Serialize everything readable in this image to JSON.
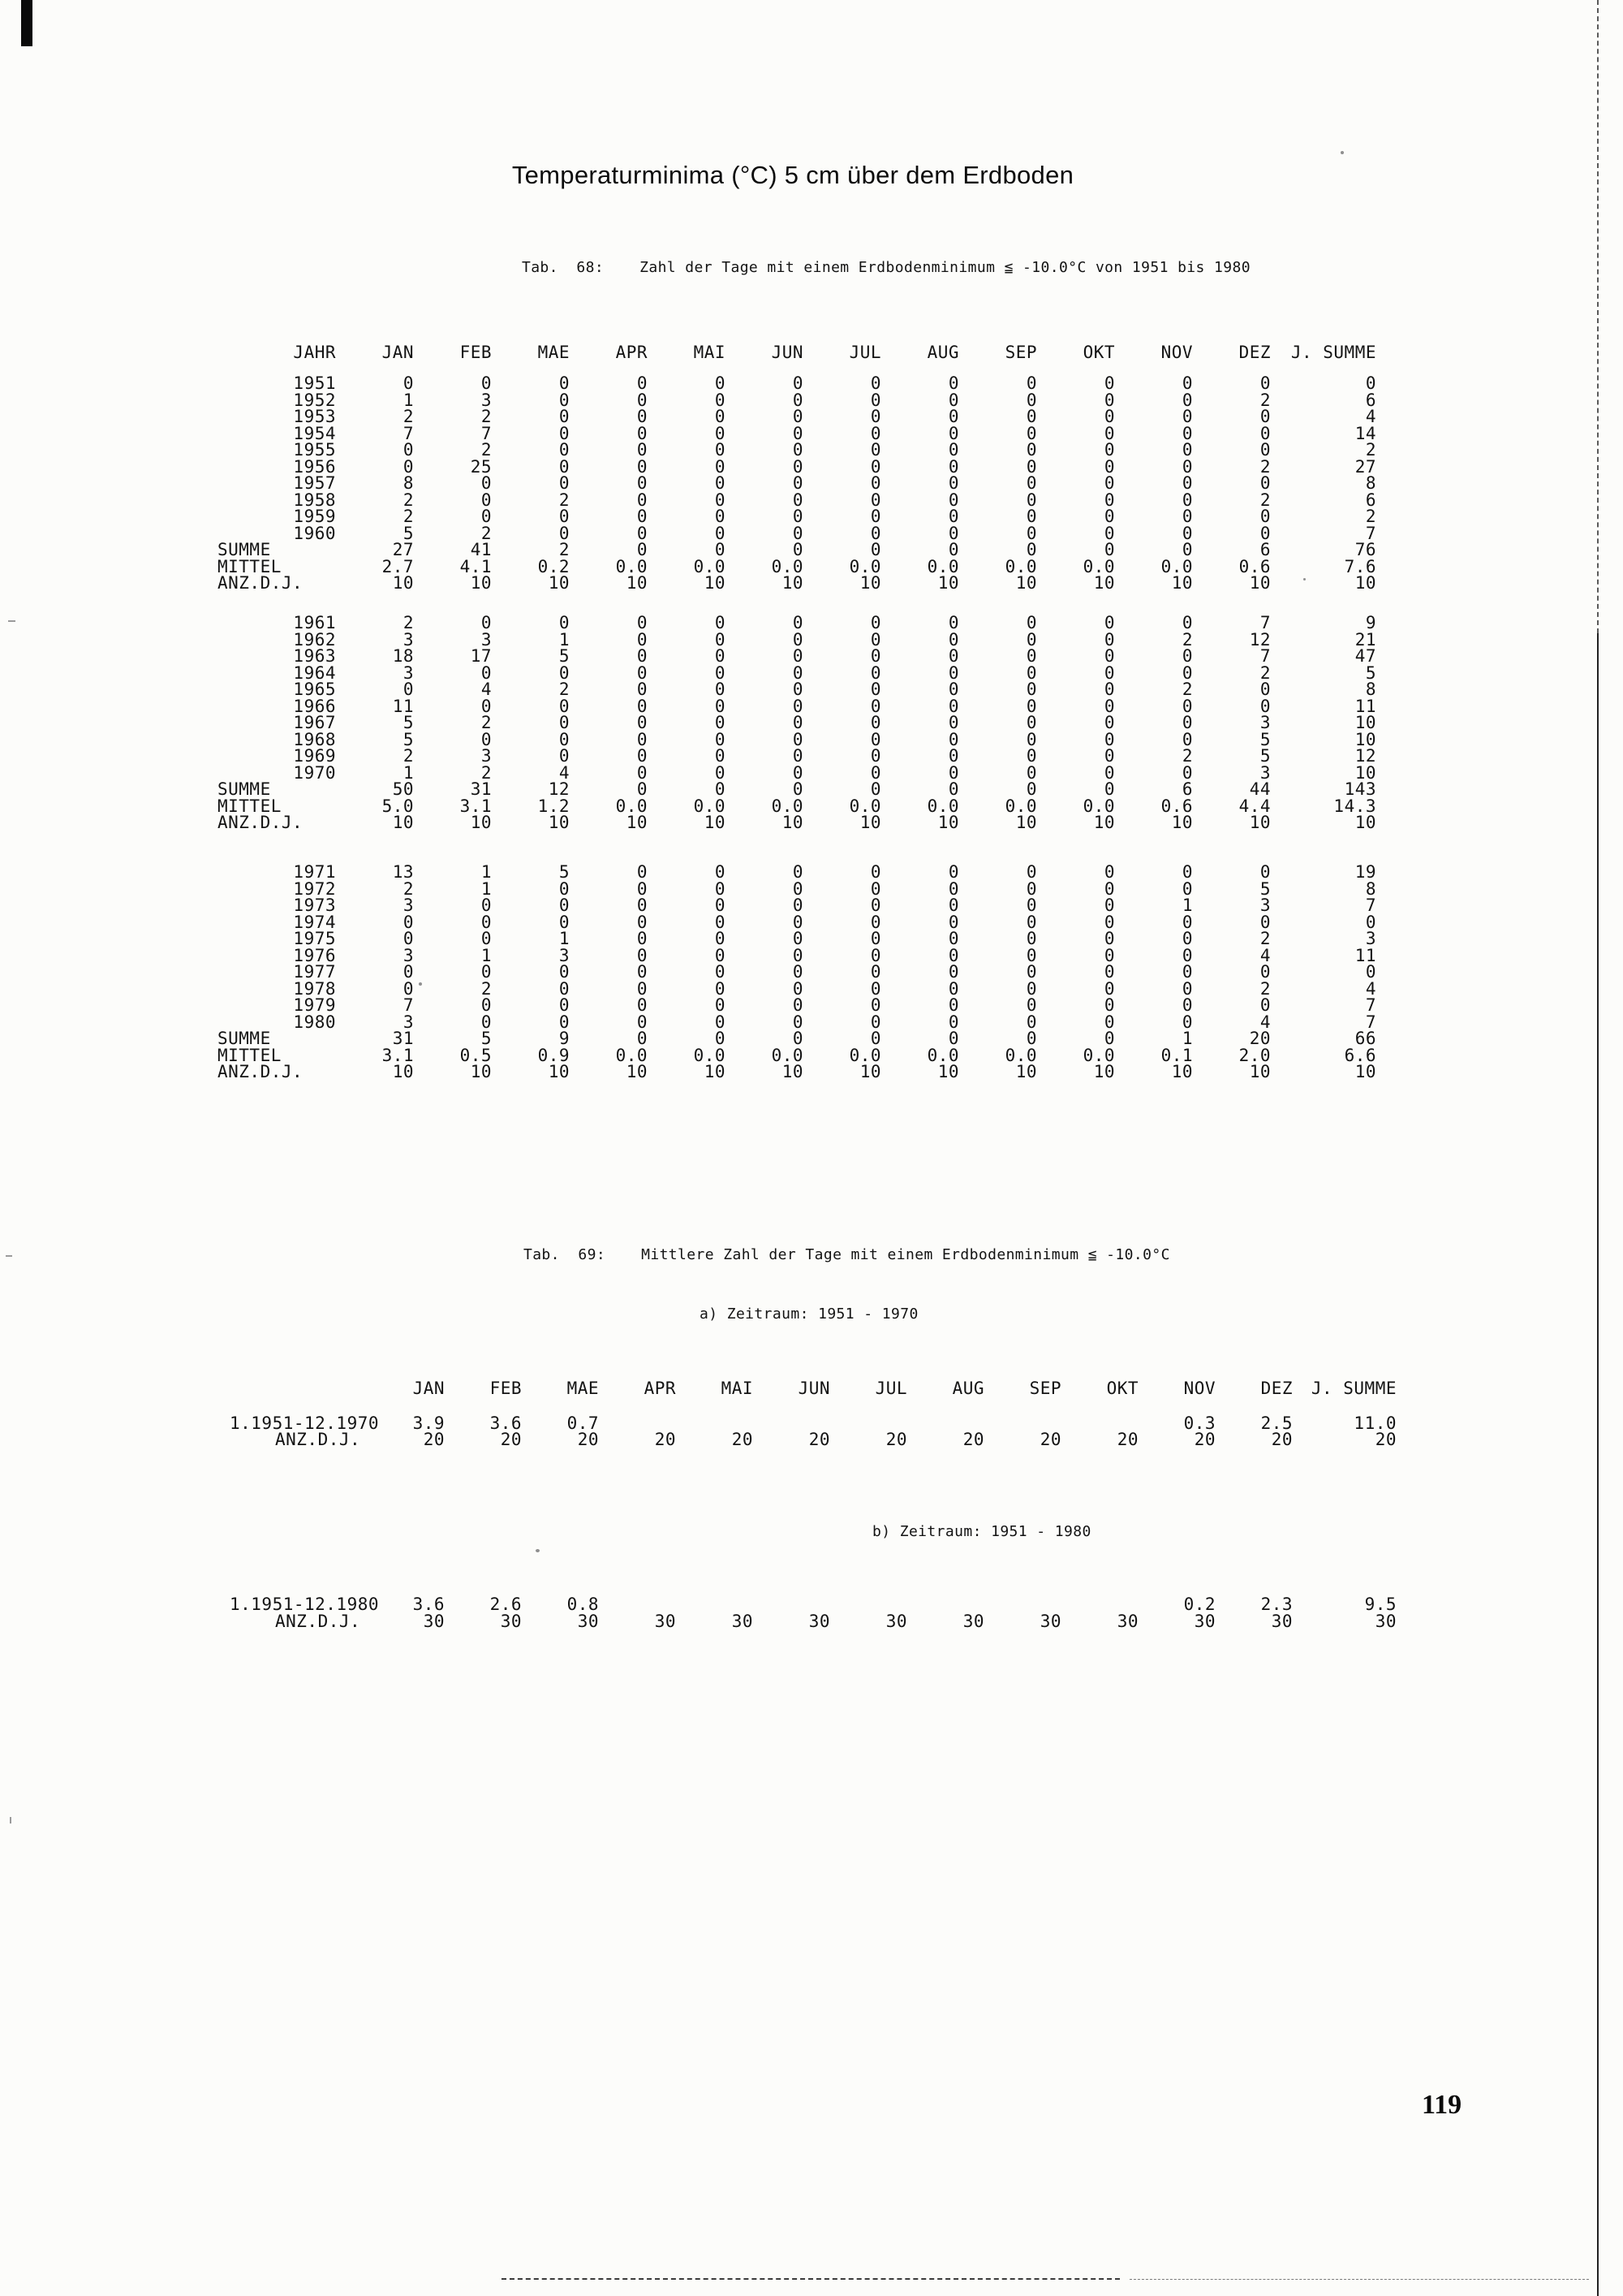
{
  "page": {
    "title": "Temperaturminima (°C) 5 cm über dem Erdboden",
    "page_number": "119"
  },
  "tab68": {
    "caption_label": "Tab.  68:",
    "caption_text": "Zahl der Tage mit einem Erdbodenminimum ≦ -10.0°C von 1951 bis 1980",
    "columns": [
      "JAHR",
      "JAN",
      "FEB",
      "MAE",
      "APR",
      "MAI",
      "JUN",
      "JUL",
      "AUG",
      "SEP",
      "OKT",
      "NOV",
      "DEZ",
      "J. SUMME"
    ],
    "blocks": [
      {
        "rows": [
          {
            "label": "1951",
            "values": [
              "0",
              "0",
              "0",
              "0",
              "0",
              "0",
              "0",
              "0",
              "0",
              "0",
              "0",
              "0",
              "0"
            ]
          },
          {
            "label": "1952",
            "values": [
              "1",
              "3",
              "0",
              "0",
              "0",
              "0",
              "0",
              "0",
              "0",
              "0",
              "0",
              "2",
              "6"
            ]
          },
          {
            "label": "1953",
            "values": [
              "2",
              "2",
              "0",
              "0",
              "0",
              "0",
              "0",
              "0",
              "0",
              "0",
              "0",
              "0",
              "4"
            ]
          },
          {
            "label": "1954",
            "values": [
              "7",
              "7",
              "0",
              "0",
              "0",
              "0",
              "0",
              "0",
              "0",
              "0",
              "0",
              "0",
              "14"
            ]
          },
          {
            "label": "1955",
            "values": [
              "0",
              "2",
              "0",
              "0",
              "0",
              "0",
              "0",
              "0",
              "0",
              "0",
              "0",
              "0",
              "2"
            ]
          },
          {
            "label": "1956",
            "values": [
              "0",
              "25",
              "0",
              "0",
              "0",
              "0",
              "0",
              "0",
              "0",
              "0",
              "0",
              "2",
              "27"
            ]
          },
          {
            "label": "1957",
            "values": [
              "8",
              "0",
              "0",
              "0",
              "0",
              "0",
              "0",
              "0",
              "0",
              "0",
              "0",
              "0",
              "8"
            ]
          },
          {
            "label": "1958",
            "values": [
              "2",
              "0",
              "2",
              "0",
              "0",
              "0",
              "0",
              "0",
              "0",
              "0",
              "0",
              "2",
              "6"
            ]
          },
          {
            "label": "1959",
            "values": [
              "2",
              "0",
              "0",
              "0",
              "0",
              "0",
              "0",
              "0",
              "0",
              "0",
              "0",
              "0",
              "2"
            ]
          },
          {
            "label": "1960",
            "values": [
              "5",
              "2",
              "0",
              "0",
              "0",
              "0",
              "0",
              "0",
              "0",
              "0",
              "0",
              "0",
              "7"
            ]
          },
          {
            "label": "SUMME",
            "values": [
              "27",
              "41",
              "2",
              "0",
              "0",
              "0",
              "0",
              "0",
              "0",
              "0",
              "0",
              "6",
              "76"
            ]
          },
          {
            "label": "MITTEL",
            "values": [
              "2.7",
              "4.1",
              "0.2",
              "0.0",
              "0.0",
              "0.0",
              "0.0",
              "0.0",
              "0.0",
              "0.0",
              "0.0",
              "0.6",
              "7.6"
            ]
          },
          {
            "label": "ANZ.D.J.",
            "values": [
              "10",
              "10",
              "10",
              "10",
              "10",
              "10",
              "10",
              "10",
              "10",
              "10",
              "10",
              "10",
              "10"
            ]
          }
        ]
      },
      {
        "rows": [
          {
            "label": "1961",
            "values": [
              "2",
              "0",
              "0",
              "0",
              "0",
              "0",
              "0",
              "0",
              "0",
              "0",
              "0",
              "7",
              "9"
            ]
          },
          {
            "label": "1962",
            "values": [
              "3",
              "3",
              "1",
              "0",
              "0",
              "0",
              "0",
              "0",
              "0",
              "0",
              "2",
              "12",
              "21"
            ]
          },
          {
            "label": "1963",
            "values": [
              "18",
              "17",
              "5",
              "0",
              "0",
              "0",
              "0",
              "0",
              "0",
              "0",
              "0",
              "7",
              "47"
            ]
          },
          {
            "label": "1964",
            "values": [
              "3",
              "0",
              "0",
              "0",
              "0",
              "0",
              "0",
              "0",
              "0",
              "0",
              "0",
              "2",
              "5"
            ]
          },
          {
            "label": "1965",
            "values": [
              "0",
              "4",
              "2",
              "0",
              "0",
              "0",
              "0",
              "0",
              "0",
              "0",
              "2",
              "0",
              "8"
            ]
          },
          {
            "label": "1966",
            "values": [
              "11",
              "0",
              "0",
              "0",
              "0",
              "0",
              "0",
              "0",
              "0",
              "0",
              "0",
              "0",
              "11"
            ]
          },
          {
            "label": "1967",
            "values": [
              "5",
              "2",
              "0",
              "0",
              "0",
              "0",
              "0",
              "0",
              "0",
              "0",
              "0",
              "3",
              "10"
            ]
          },
          {
            "label": "1968",
            "values": [
              "5",
              "0",
              "0",
              "0",
              "0",
              "0",
              "0",
              "0",
              "0",
              "0",
              "0",
              "5",
              "10"
            ]
          },
          {
            "label": "1969",
            "values": [
              "2",
              "3",
              "0",
              "0",
              "0",
              "0",
              "0",
              "0",
              "0",
              "0",
              "2",
              "5",
              "12"
            ]
          },
          {
            "label": "1970",
            "values": [
              "1",
              "2",
              "4",
              "0",
              "0",
              "0",
              "0",
              "0",
              "0",
              "0",
              "0",
              "3",
              "10"
            ]
          },
          {
            "label": "SUMME",
            "values": [
              "50",
              "31",
              "12",
              "0",
              "0",
              "0",
              "0",
              "0",
              "0",
              "0",
              "6",
              "44",
              "143"
            ]
          },
          {
            "label": "MITTEL",
            "values": [
              "5.0",
              "3.1",
              "1.2",
              "0.0",
              "0.0",
              "0.0",
              "0.0",
              "0.0",
              "0.0",
              "0.0",
              "0.6",
              "4.4",
              "14.3"
            ]
          },
          {
            "label": "ANZ.D.J.",
            "values": [
              "10",
              "10",
              "10",
              "10",
              "10",
              "10",
              "10",
              "10",
              "10",
              "10",
              "10",
              "10",
              "10"
            ]
          }
        ]
      },
      {
        "rows": [
          {
            "label": "1971",
            "values": [
              "13",
              "1",
              "5",
              "0",
              "0",
              "0",
              "0",
              "0",
              "0",
              "0",
              "0",
              "0",
              "19"
            ]
          },
          {
            "label": "1972",
            "values": [
              "2",
              "1",
              "0",
              "0",
              "0",
              "0",
              "0",
              "0",
              "0",
              "0",
              "0",
              "5",
              "8"
            ]
          },
          {
            "label": "1973",
            "values": [
              "3",
              "0",
              "0",
              "0",
              "0",
              "0",
              "0",
              "0",
              "0",
              "0",
              "1",
              "3",
              "7"
            ]
          },
          {
            "label": "1974",
            "values": [
              "0",
              "0",
              "0",
              "0",
              "0",
              "0",
              "0",
              "0",
              "0",
              "0",
              "0",
              "0",
              "0"
            ]
          },
          {
            "label": "1975",
            "values": [
              "0",
              "0",
              "1",
              "0",
              "0",
              "0",
              "0",
              "0",
              "0",
              "0",
              "0",
              "2",
              "3"
            ]
          },
          {
            "label": "1976",
            "values": [
              "3",
              "1",
              "3",
              "0",
              "0",
              "0",
              "0",
              "0",
              "0",
              "0",
              "0",
              "4",
              "11"
            ]
          },
          {
            "label": "1977",
            "values": [
              "0",
              "0",
              "0",
              "0",
              "0",
              "0",
              "0",
              "0",
              "0",
              "0",
              "0",
              "0",
              "0"
            ]
          },
          {
            "label": "1978",
            "values": [
              "0",
              "2",
              "0",
              "0",
              "0",
              "0",
              "0",
              "0",
              "0",
              "0",
              "0",
              "2",
              "4"
            ]
          },
          {
            "label": "1979",
            "values": [
              "7",
              "0",
              "0",
              "0",
              "0",
              "0",
              "0",
              "0",
              "0",
              "0",
              "0",
              "0",
              "7"
            ]
          },
          {
            "label": "1980",
            "values": [
              "3",
              "0",
              "0",
              "0",
              "0",
              "0",
              "0",
              "0",
              "0",
              "0",
              "0",
              "4",
              "7"
            ]
          },
          {
            "label": "SUMME",
            "values": [
              "31",
              "5",
              "9",
              "0",
              "0",
              "0",
              "0",
              "0",
              "0",
              "0",
              "1",
              "20",
              "66"
            ]
          },
          {
            "label": "MITTEL",
            "values": [
              "3.1",
              "0.5",
              "0.9",
              "0.0",
              "0.0",
              "0.0",
              "0.0",
              "0.0",
              "0.0",
              "0.0",
              "0.1",
              "2.0",
              "6.6"
            ]
          },
          {
            "label": "ANZ.D.J.",
            "values": [
              "10",
              "10",
              "10",
              "10",
              "10",
              "10",
              "10",
              "10",
              "10",
              "10",
              "10",
              "10",
              "10"
            ]
          }
        ]
      }
    ]
  },
  "tab69": {
    "caption_label": "Tab.  69:",
    "caption_text": "Mittlere Zahl der Tage mit einem Erdbodenminimum ≦ -10.0°C",
    "columns": [
      "JAN",
      "FEB",
      "MAE",
      "APR",
      "MAI",
      "JUN",
      "JUL",
      "AUG",
      "SEP",
      "OKT",
      "NOV",
      "DEZ",
      "J. SUMME"
    ],
    "section_a": {
      "heading": "a) Zeitraum: 1951 - 1970",
      "rows": [
        {
          "label": "1.1951-12.1970",
          "values": [
            "3.9",
            "3.6",
            "0.7",
            "",
            "",
            "",
            "",
            "",
            "",
            "",
            "0.3",
            "2.5",
            "11.0"
          ]
        },
        {
          "label": "ANZ.D.J.",
          "values": [
            "20",
            "20",
            "20",
            "20",
            "20",
            "20",
            "20",
            "20",
            "20",
            "20",
            "20",
            "20",
            "20"
          ]
        }
      ]
    },
    "section_b": {
      "heading": "b) Zeitraum: 1951 - 1980",
      "rows": [
        {
          "label": "1.1951-12.1980",
          "values": [
            "3.6",
            "2.6",
            "0.8",
            "",
            "",
            "",
            "",
            "",
            "",
            "",
            "0.2",
            "2.3",
            "9.5"
          ]
        },
        {
          "label": "ANZ.D.J.",
          "values": [
            "30",
            "30",
            "30",
            "30",
            "30",
            "30",
            "30",
            "30",
            "30",
            "30",
            "30",
            "30",
            "30"
          ]
        }
      ]
    }
  },
  "chart_data": {
    "type": "table",
    "title": "Zahl der Tage mit einem Erdbodenminimum ≦ -10.0°C von 1951 bis 1980",
    "categories": [
      "JAN",
      "FEB",
      "MAE",
      "APR",
      "MAI",
      "JUN",
      "JUL",
      "AUG",
      "SEP",
      "OKT",
      "NOV",
      "DEZ",
      "J. SUMME"
    ],
    "series": [
      {
        "name": "MITTEL 1951-1960",
        "values": [
          2.7,
          4.1,
          0.2,
          0.0,
          0.0,
          0.0,
          0.0,
          0.0,
          0.0,
          0.0,
          0.0,
          0.6,
          7.6
        ]
      },
      {
        "name": "MITTEL 1961-1970",
        "values": [
          5.0,
          3.1,
          1.2,
          0.0,
          0.0,
          0.0,
          0.0,
          0.0,
          0.0,
          0.0,
          0.6,
          4.4,
          14.3
        ]
      },
      {
        "name": "MITTEL 1971-1980",
        "values": [
          3.1,
          0.5,
          0.9,
          0.0,
          0.0,
          0.0,
          0.0,
          0.0,
          0.0,
          0.0,
          0.1,
          2.0,
          6.6
        ]
      },
      {
        "name": "MITTEL 1951-1970",
        "values": [
          3.9,
          3.6,
          0.7,
          null,
          null,
          null,
          null,
          null,
          null,
          null,
          0.3,
          2.5,
          11.0
        ]
      },
      {
        "name": "MITTEL 1951-1980",
        "values": [
          3.6,
          2.6,
          0.8,
          null,
          null,
          null,
          null,
          null,
          null,
          null,
          0.2,
          2.3,
          9.5
        ]
      }
    ]
  }
}
